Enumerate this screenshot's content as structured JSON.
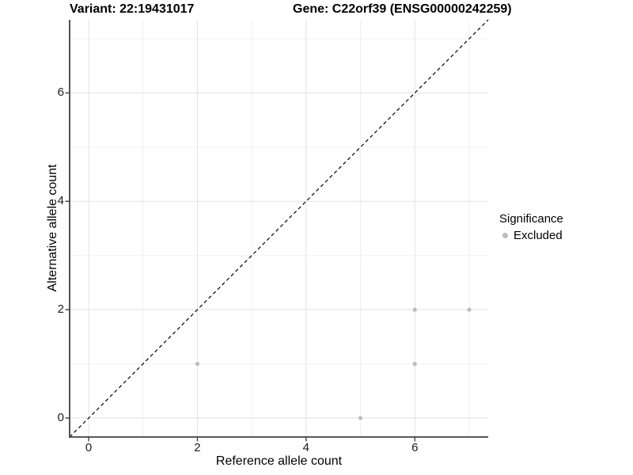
{
  "figure": {
    "title_left": "Variant: 22:19431017",
    "title_right": "Gene: C22orf39 (ENSG00000242259)"
  },
  "chart_data": {
    "type": "scatter",
    "title": "Variant: 22:19431017  /  Gene: C22orf39 (ENSG00000242259)",
    "xlabel": "Reference allele count",
    "ylabel": "Alternative allele count",
    "xlim": [
      -0.35,
      7.35
    ],
    "ylim": [
      -0.35,
      7.35
    ],
    "x_major_ticks": [
      0,
      2,
      4,
      6
    ],
    "y_major_ticks": [
      0,
      2,
      4,
      6
    ],
    "x_minor_gridlines": [
      1,
      3,
      5,
      7
    ],
    "y_minor_gridlines": [
      1,
      3,
      5,
      7
    ],
    "grid": true,
    "reference_line": {
      "kind": "identity",
      "slope": 1,
      "intercept": 0,
      "style": "dashed",
      "color": "#000000"
    },
    "series": [
      {
        "name": "Excluded",
        "color": "#bcbcbc",
        "marker": "circle",
        "points": [
          [
            2,
            1
          ],
          [
            5,
            0
          ],
          [
            6,
            1
          ],
          [
            6,
            2
          ],
          [
            7,
            2
          ]
        ]
      }
    ],
    "legend": {
      "title": "Significance",
      "position": "right",
      "items": [
        {
          "label": "Excluded",
          "color": "#bcbcbc"
        }
      ]
    },
    "colors": {
      "grid_major": "#e2e2e2",
      "grid_minor": "#f0f0f0",
      "axis_line": "#404040",
      "text": "#000000"
    }
  }
}
